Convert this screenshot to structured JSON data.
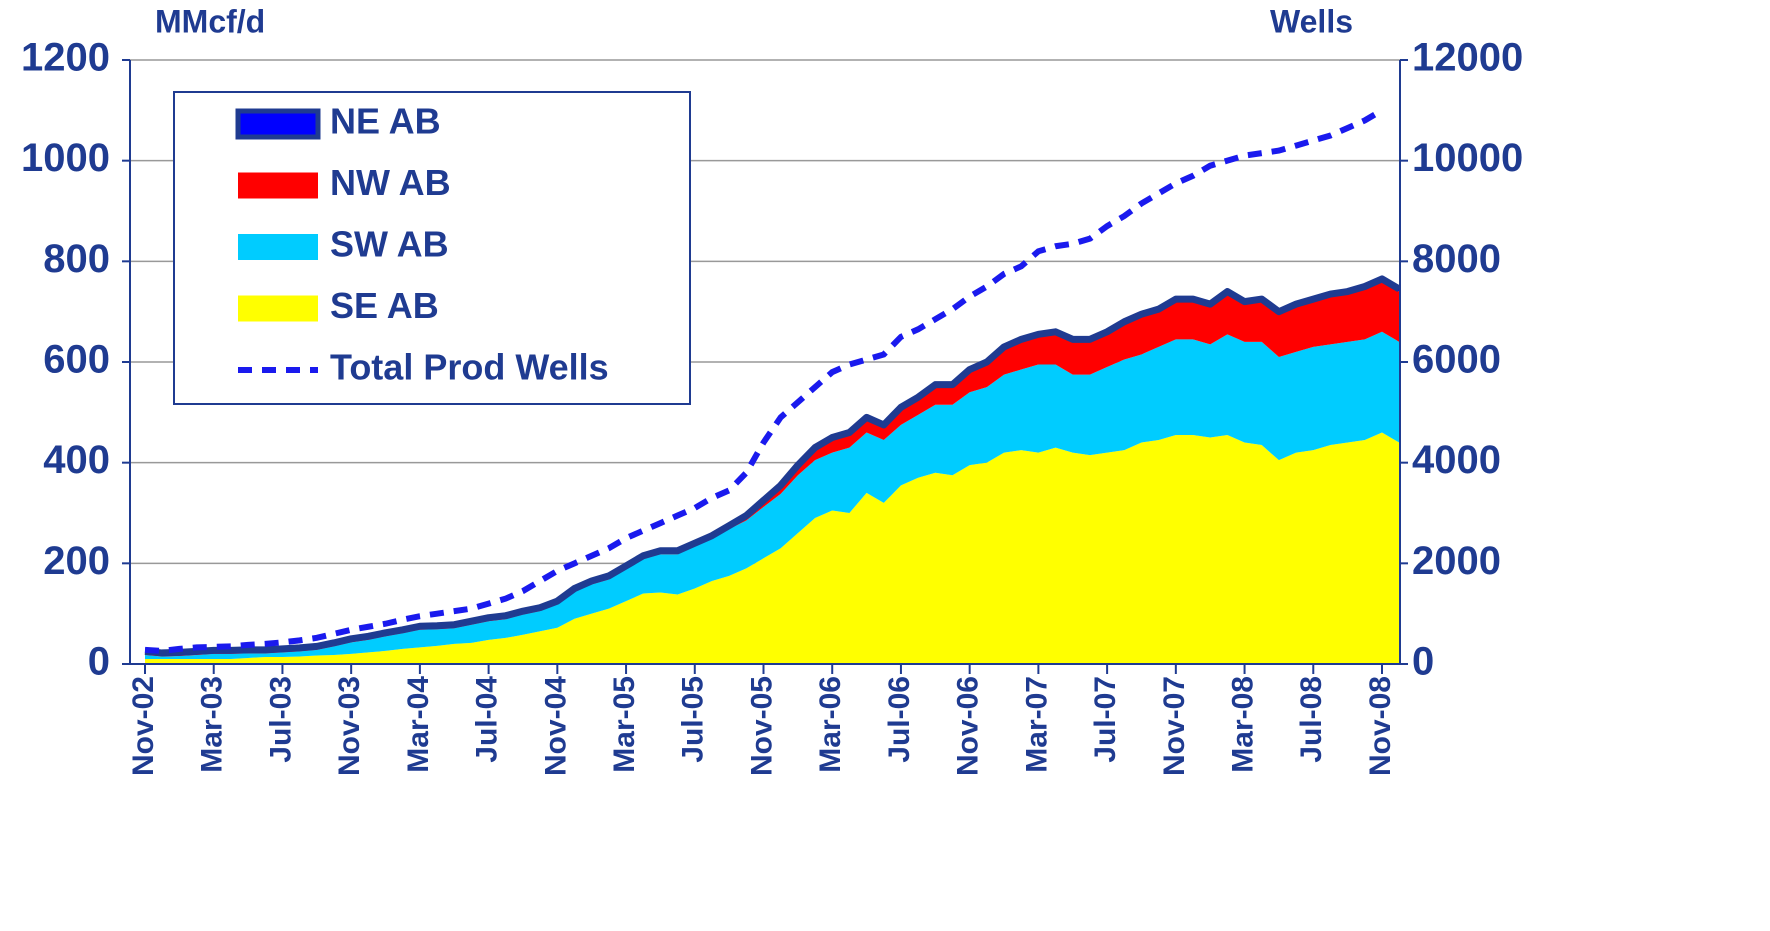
{
  "chart_data": {
    "type": "stacked_area",
    "y_label": "MMcf/d",
    "y2_label": "Wells",
    "categories": [
      "Nov-02",
      null,
      null,
      null,
      "Mar-03",
      null,
      null,
      null,
      "Jul-03",
      null,
      null,
      null,
      "Nov-03",
      null,
      null,
      null,
      "Mar-04",
      null,
      null,
      null,
      "Jul-04",
      null,
      null,
      null,
      "Nov-04",
      null,
      null,
      null,
      "Mar-05",
      null,
      null,
      null,
      "Jul-05",
      null,
      null,
      null,
      "Nov-05",
      null,
      null,
      null,
      "Mar-06",
      null,
      null,
      null,
      "Jul-06",
      null,
      null,
      null,
      "Nov-06",
      null,
      null,
      null,
      "Mar-07",
      null,
      null,
      null,
      "Jul-07",
      null,
      null,
      null,
      "Nov-07",
      null,
      null,
      null,
      "Mar-08",
      null,
      null,
      null,
      "Jul-08",
      null,
      null,
      null,
      "Nov-08",
      null
    ],
    "series": [
      {
        "name": "SE AB",
        "color": "#ffff00",
        "values": [
          10,
          10,
          10,
          10,
          10,
          10,
          12,
          14,
          14,
          15,
          17,
          18,
          20,
          23,
          26,
          30,
          33,
          36,
          40,
          42,
          48,
          52,
          58,
          65,
          72,
          90,
          100,
          110,
          125,
          140,
          142,
          138,
          150,
          165,
          175,
          190,
          210,
          230,
          260,
          290,
          305,
          300,
          340,
          320,
          355,
          370,
          380,
          375,
          395,
          400,
          420,
          425,
          420,
          430,
          420,
          415,
          420,
          425,
          440,
          445,
          455,
          455,
          450,
          455,
          440,
          435,
          405,
          420,
          425,
          435,
          440,
          445,
          460,
          440
        ]
      },
      {
        "name": "SW AB",
        "color": "#00ccff",
        "values": [
          8,
          5,
          6,
          8,
          10,
          10,
          9,
          7,
          9,
          10,
          11,
          17,
          23,
          25,
          29,
          31,
          35,
          33,
          31,
          36,
          37,
          37,
          40,
          40,
          46,
          53,
          58,
          58,
          63,
          68,
          76,
          80,
          83,
          83,
          93,
          95,
          102,
          108,
          115,
          115,
          115,
          130,
          120,
          125,
          120,
          125,
          135,
          140,
          145,
          150,
          155,
          160,
          175,
          165,
          155,
          160,
          170,
          180,
          175,
          185,
          190,
          190,
          185,
          200,
          200,
          205,
          205,
          200,
          205,
          200,
          200,
          200,
          200,
          200
        ]
      },
      {
        "name": "NW AB",
        "color": "#ff0000",
        "values": [
          2,
          2,
          2,
          2,
          2,
          2,
          2,
          2,
          2,
          2,
          2,
          2,
          2,
          2,
          2,
          2,
          2,
          2,
          2,
          2,
          2,
          2,
          2,
          2,
          2,
          2,
          2,
          2,
          2,
          2,
          2,
          2,
          2,
          2,
          2,
          5,
          8,
          12,
          15,
          20,
          25,
          25,
          25,
          25,
          30,
          30,
          35,
          35,
          40,
          45,
          50,
          55,
          55,
          60,
          65,
          65,
          65,
          70,
          75,
          70,
          75,
          75,
          75,
          80,
          75,
          80,
          85,
          90,
          90,
          95,
          95,
          100,
          100,
          100
        ]
      },
      {
        "name": "NE AB",
        "color": "#0000ff",
        "values": [
          5,
          5,
          5,
          5,
          5,
          5,
          5,
          5,
          5,
          5,
          5,
          5,
          5,
          5,
          5,
          5,
          5,
          5,
          5,
          5,
          5,
          5,
          5,
          5,
          5,
          5,
          5,
          5,
          5,
          5,
          5,
          5,
          5,
          5,
          5,
          5,
          5,
          5,
          5,
          5,
          5,
          5,
          5,
          5,
          5,
          5,
          5,
          5,
          5,
          5,
          5,
          5,
          5,
          5,
          5,
          5,
          5,
          5,
          5,
          5,
          5,
          5,
          5,
          5,
          5,
          5,
          5,
          5,
          5,
          5,
          5,
          5,
          5,
          5
        ]
      },
      {
        "name": "Total Prod Wells",
        "color": "#1a1aee",
        "axis": "y2",
        "line": "dashed",
        "values": [
          280,
          260,
          300,
          330,
          340,
          350,
          380,
          400,
          430,
          470,
          520,
          600,
          680,
          740,
          800,
          880,
          950,
          1000,
          1050,
          1100,
          1200,
          1300,
          1450,
          1650,
          1850,
          2000,
          2150,
          2300,
          2500,
          2650,
          2800,
          2950,
          3100,
          3300,
          3450,
          3800,
          4400,
          4900,
          5200,
          5500,
          5800,
          5950,
          6050,
          6150,
          6500,
          6650,
          6850,
          7050,
          7300,
          7500,
          7750,
          7900,
          8200,
          8300,
          8350,
          8450,
          8700,
          8900,
          9150,
          9350,
          9550,
          9700,
          9900,
          10000,
          10100,
          10150,
          10200,
          10300,
          10400,
          10500,
          10650,
          10800,
          11000,
          null
        ]
      }
    ],
    "ylim": [
      0,
      1200
    ],
    "yticks": [
      0,
      200,
      400,
      600,
      800,
      1000,
      1200
    ],
    "y2lim": [
      0,
      12000
    ],
    "y2ticks": [
      0,
      2000,
      4000,
      6000,
      8000,
      10000,
      12000
    ],
    "grid": true,
    "legend": "upper left",
    "legend_order": [
      3,
      2,
      1,
      0,
      4
    ]
  }
}
